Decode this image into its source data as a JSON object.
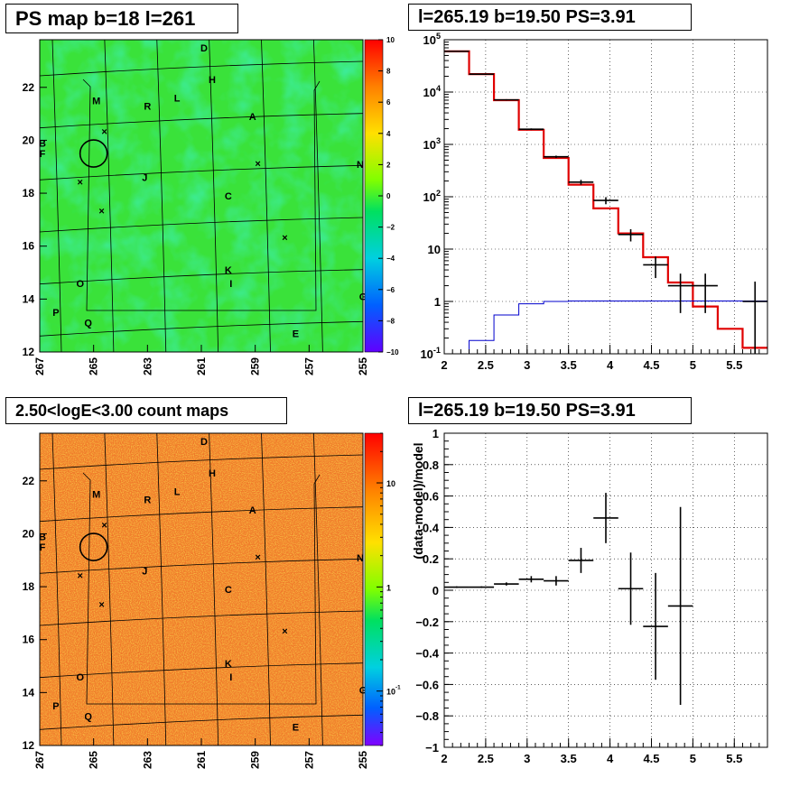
{
  "colors": {
    "ps_map_base": "#3ae23a",
    "count_map_base": "#f07a2a",
    "model_line": "#e00000",
    "background_line": "#0000cc"
  },
  "chart_data": [
    {
      "type": "heatmap",
      "title": "PS map b=18 l=261",
      "x_ticks": [
        "267",
        "265",
        "263",
        "261",
        "259",
        "257",
        "255"
      ],
      "y_ticks": [
        "12",
        "14",
        "16",
        "18",
        "20",
        "22"
      ],
      "xlim": [
        267,
        255
      ],
      "ylim": [
        12,
        23.8
      ],
      "colorbar": {
        "min": -10,
        "max": 10,
        "ticks": [
          "10",
          "8",
          "6",
          "4",
          "2",
          "0",
          "−2",
          "−4",
          "−6",
          "−8",
          "−10"
        ]
      },
      "sources": [
        {
          "name": "D",
          "l": 260.9,
          "b": 23.5
        },
        {
          "name": "H",
          "l": 260.6,
          "b": 22.3
        },
        {
          "name": "M",
          "l": 264.9,
          "b": 21.5
        },
        {
          "name": "R",
          "l": 263.0,
          "b": 21.3
        },
        {
          "name": "L",
          "l": 261.9,
          "b": 21.6
        },
        {
          "name": "A",
          "l": 259.1,
          "b": 20.9
        },
        {
          "name": "B",
          "l": 266.9,
          "b": 19.9
        },
        {
          "name": "F",
          "l": 266.9,
          "b": 19.5
        },
        {
          "name": "N",
          "l": 255.1,
          "b": 19.1
        },
        {
          "name": "J",
          "l": 263.1,
          "b": 18.6
        },
        {
          "name": "C",
          "l": 260.0,
          "b": 17.9
        },
        {
          "name": "K",
          "l": 260.0,
          "b": 15.1
        },
        {
          "name": "I",
          "l": 259.9,
          "b": 14.6
        },
        {
          "name": "O",
          "l": 265.5,
          "b": 14.6
        },
        {
          "name": "G",
          "l": 255.0,
          "b": 14.1
        },
        {
          "name": "P",
          "l": 266.4,
          "b": 13.5
        },
        {
          "name": "Q",
          "l": 265.2,
          "b": 13.1
        },
        {
          "name": "E",
          "l": 257.5,
          "b": 12.7
        }
      ],
      "crosses": [
        {
          "l": 264.6,
          "b": 20.3
        },
        {
          "l": 258.9,
          "b": 19.1
        },
        {
          "l": 265.5,
          "b": 18.4
        },
        {
          "l": 264.7,
          "b": 17.3
        },
        {
          "l": 257.9,
          "b": 16.3
        }
      ],
      "circle": {
        "l": 265.0,
        "b": 19.5
      }
    },
    {
      "type": "line",
      "title": "l=265.19 b=19.50 PS=3.91",
      "xlim": [
        2,
        5.9
      ],
      "ylim_log": [
        0.1,
        100000
      ],
      "x_ticks": [
        "2",
        "2.5",
        "3",
        "3.5",
        "4",
        "4.5",
        "5",
        "5.5"
      ],
      "y_ticks": [
        "10^-1",
        "1",
        "10",
        "10^2",
        "10^3",
        "10^4",
        "10^5"
      ],
      "model_edges": [
        2.0,
        2.3,
        2.6,
        2.9,
        3.2,
        3.5,
        3.8,
        4.1,
        4.4,
        4.7,
        5.0,
        5.3,
        5.6,
        5.9
      ],
      "model_values": [
        60000,
        22000,
        7000,
        1900,
        550,
        170,
        60,
        20,
        7,
        2.3,
        0.8,
        0.3,
        0.13
      ],
      "background_values": [
        0.08,
        0.18,
        0.55,
        0.9,
        1.0,
        1.02,
        1.02,
        1.02,
        1.02,
        1.02,
        1.02,
        1.02,
        1.02
      ],
      "data_points": [
        {
          "x": 2.15,
          "y": 60000,
          "ylo": 59000,
          "yhi": 61000
        },
        {
          "x": 2.45,
          "y": 22000,
          "ylo": 21500,
          "yhi": 22500
        },
        {
          "x": 2.75,
          "y": 7100,
          "ylo": 6900,
          "yhi": 7300
        },
        {
          "x": 3.05,
          "y": 1950,
          "ylo": 1880,
          "yhi": 2020
        },
        {
          "x": 3.35,
          "y": 580,
          "ylo": 550,
          "yhi": 610
        },
        {
          "x": 3.65,
          "y": 190,
          "ylo": 170,
          "yhi": 210
        },
        {
          "x": 3.95,
          "y": 85,
          "ylo": 72,
          "yhi": 98
        },
        {
          "x": 4.25,
          "y": 19,
          "ylo": 14,
          "yhi": 24
        },
        {
          "x": 4.55,
          "y": 5,
          "ylo": 2.8,
          "yhi": 7.2
        },
        {
          "x": 4.85,
          "y": 2,
          "ylo": 0.6,
          "yhi": 3.4
        },
        {
          "x": 5.15,
          "y": 2,
          "ylo": 0.6,
          "yhi": 3.4
        },
        {
          "x": 5.75,
          "y": 1,
          "ylo": 0.1,
          "yhi": 2.4
        }
      ]
    },
    {
      "type": "heatmap",
      "title": "2.50<logE<3.00 count maps",
      "x_ticks": [
        "267",
        "265",
        "263",
        "261",
        "259",
        "257",
        "255"
      ],
      "y_ticks": [
        "12",
        "14",
        "16",
        "18",
        "20",
        "22"
      ],
      "xlim": [
        267,
        255
      ],
      "ylim": [
        12,
        23.8
      ],
      "colorbar_log": {
        "min": 0.03,
        "max": 30,
        "ticks": [
          "10",
          "1",
          "10^-1"
        ]
      },
      "sources": [
        {
          "name": "D",
          "l": 260.9,
          "b": 23.5
        },
        {
          "name": "H",
          "l": 260.6,
          "b": 22.3
        },
        {
          "name": "M",
          "l": 264.9,
          "b": 21.5
        },
        {
          "name": "R",
          "l": 263.0,
          "b": 21.3
        },
        {
          "name": "L",
          "l": 261.9,
          "b": 21.6
        },
        {
          "name": "A",
          "l": 259.1,
          "b": 20.9
        },
        {
          "name": "B",
          "l": 266.9,
          "b": 19.9
        },
        {
          "name": "F",
          "l": 266.9,
          "b": 19.5
        },
        {
          "name": "N",
          "l": 255.1,
          "b": 19.1
        },
        {
          "name": "J",
          "l": 263.1,
          "b": 18.6
        },
        {
          "name": "C",
          "l": 260.0,
          "b": 17.9
        },
        {
          "name": "K",
          "l": 260.0,
          "b": 15.1
        },
        {
          "name": "I",
          "l": 259.9,
          "b": 14.6
        },
        {
          "name": "O",
          "l": 265.5,
          "b": 14.6
        },
        {
          "name": "G",
          "l": 255.0,
          "b": 14.1
        },
        {
          "name": "P",
          "l": 266.4,
          "b": 13.5
        },
        {
          "name": "Q",
          "l": 265.2,
          "b": 13.1
        },
        {
          "name": "E",
          "l": 257.5,
          "b": 12.7
        }
      ],
      "crosses": [
        {
          "l": 264.6,
          "b": 20.3
        },
        {
          "l": 258.9,
          "b": 19.1
        },
        {
          "l": 265.5,
          "b": 18.4
        },
        {
          "l": 264.7,
          "b": 17.3
        },
        {
          "l": 257.9,
          "b": 16.3
        }
      ],
      "circle": {
        "l": 265.0,
        "b": 19.5
      }
    },
    {
      "type": "scatter",
      "title": "l=265.19 b=19.50 PS=3.91",
      "ylabel": "(data-model)/model",
      "xlim": [
        2,
        5.9
      ],
      "ylim": [
        -1,
        1
      ],
      "x_ticks": [
        "2",
        "2.5",
        "3",
        "3.5",
        "4",
        "4.5",
        "5",
        "5.5"
      ],
      "y_ticks": [
        "1",
        "0.8",
        "0.6",
        "0.4",
        "0.2",
        "0",
        "−0.2",
        "−0.4",
        "−0.6",
        "−0.8",
        "−1"
      ],
      "points": [
        {
          "x": 2.15,
          "y": 0.02,
          "yerr": 0.005
        },
        {
          "x": 2.45,
          "y": 0.02,
          "yerr": 0.005
        },
        {
          "x": 2.75,
          "y": 0.04,
          "yerr": 0.01
        },
        {
          "x": 3.05,
          "y": 0.07,
          "yerr": 0.02
        },
        {
          "x": 3.35,
          "y": 0.06,
          "yerr": 0.03
        },
        {
          "x": 3.65,
          "y": 0.19,
          "yerr": 0.08
        },
        {
          "x": 3.95,
          "y": 0.46,
          "yerr": 0.16
        },
        {
          "x": 4.25,
          "y": 0.01,
          "yerr": 0.23
        },
        {
          "x": 4.55,
          "y": -0.23,
          "yerr": 0.34
        },
        {
          "x": 4.85,
          "y": -0.1,
          "yerr": 0.63
        }
      ]
    }
  ]
}
